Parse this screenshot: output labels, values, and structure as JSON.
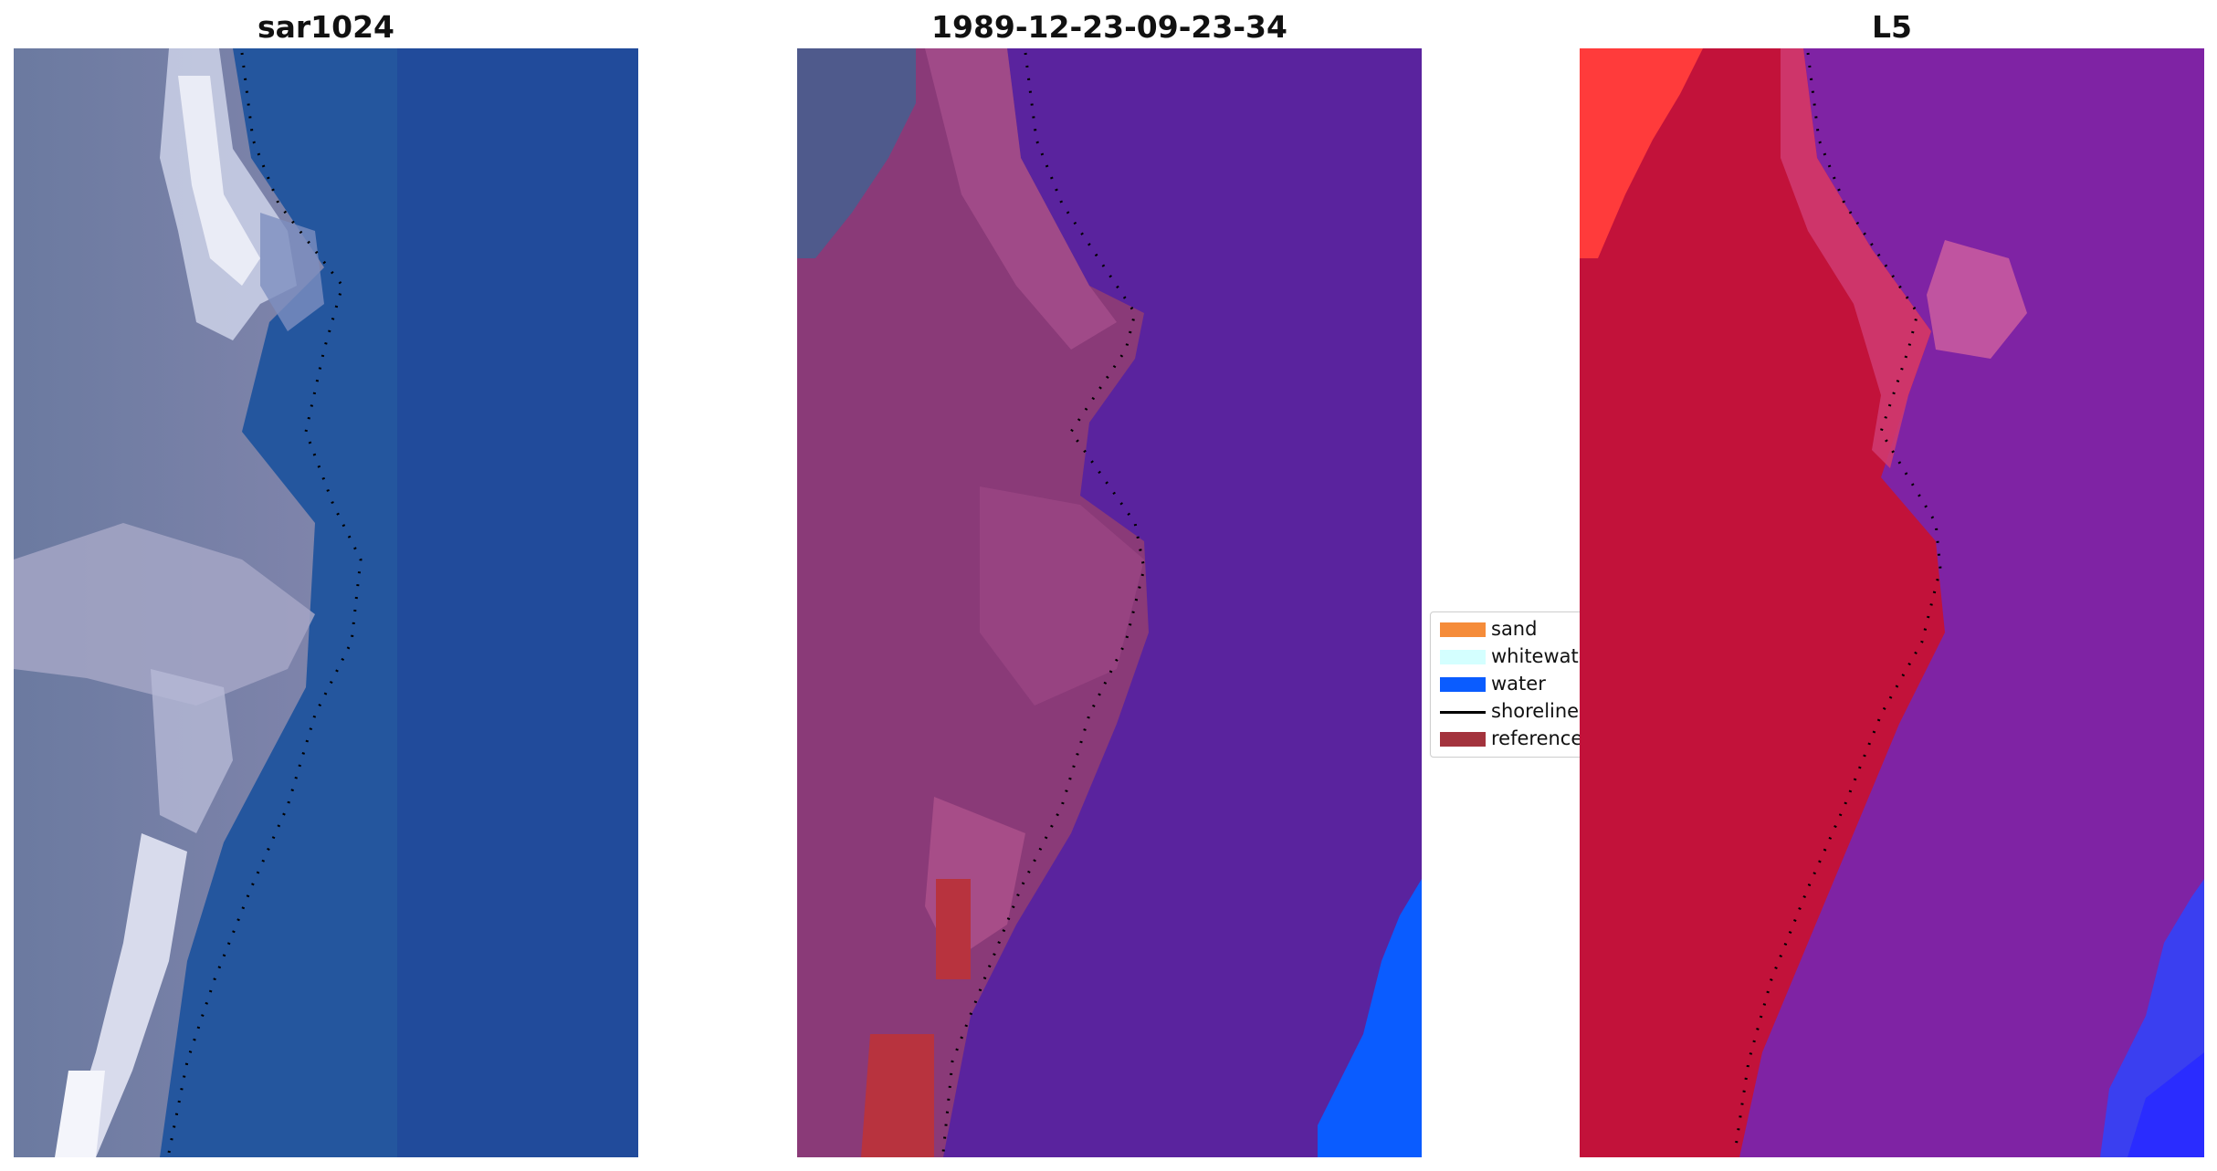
{
  "panels": [
    {
      "title": "sar1024"
    },
    {
      "title": "1989-12-23-09-23-34"
    },
    {
      "title": "L5"
    }
  ],
  "legend": {
    "items": [
      {
        "label": "sand",
        "color": "#f58c3a",
        "kind": "patch"
      },
      {
        "label": "whitewater",
        "color": "#d4ffff",
        "kind": "patch"
      },
      {
        "label": "water",
        "color": "#0a5cff",
        "kind": "patch"
      },
      {
        "label": "shoreline",
        "color": "#000000",
        "kind": "line"
      },
      {
        "label": "reference",
        "color": "#a3333d",
        "kind": "patch"
      }
    ]
  },
  "colors": {
    "rgb_water": "#22509a",
    "rgb_land": "#6e7aa3",
    "rgb_bright": "#e8eaf4",
    "class_land": "#8a3a78",
    "class_water_dark": "#5a239e",
    "class_blue": "#0a5cff",
    "class_reference": "#b8333e",
    "l5_land": "#c2123a",
    "l5_water": "#7a1ea0",
    "l5_top": "#ff3b3b"
  }
}
